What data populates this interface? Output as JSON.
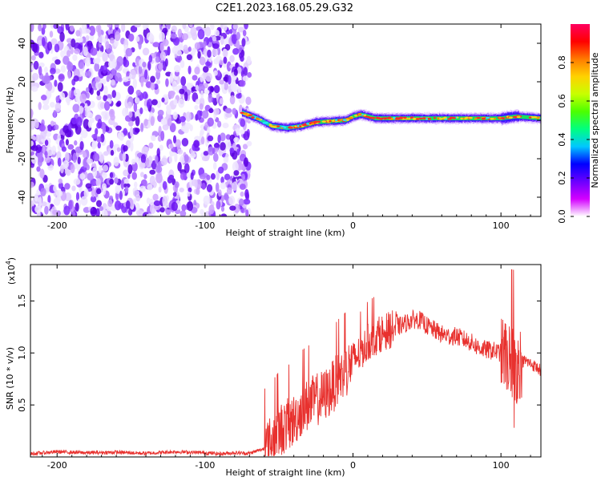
{
  "title": "C2E1.2023.168.05.29.G32",
  "chart_data": [
    {
      "type": "heatmap",
      "xlabel": "Height of straight line (km)",
      "ylabel": "Frequency (Hz)",
      "xlim": [
        -218,
        127
      ],
      "ylim": [
        -50,
        50
      ],
      "xticks": [
        -200,
        -100,
        0,
        100
      ],
      "xtick_labels": [
        "-200",
        "-100",
        "0",
        "100"
      ],
      "yticks": [
        -40,
        -20,
        0,
        20,
        40
      ],
      "ytick_labels": [
        "-40",
        "-20",
        "0",
        "20",
        "40"
      ],
      "noise_region_x": [
        -218,
        -70
      ],
      "signal_track": [
        {
          "x": -75,
          "y": 4
        },
        {
          "x": -65,
          "y": 1
        },
        {
          "x": -55,
          "y": -3
        },
        {
          "x": -45,
          "y": -4
        },
        {
          "x": -35,
          "y": -3
        },
        {
          "x": -25,
          "y": -1
        },
        {
          "x": -15,
          "y": -0.5
        },
        {
          "x": -5,
          "y": 0
        },
        {
          "x": 0,
          "y": 2
        },
        {
          "x": 5,
          "y": 3
        },
        {
          "x": 15,
          "y": 1
        },
        {
          "x": 25,
          "y": 1
        },
        {
          "x": 40,
          "y": 1
        },
        {
          "x": 60,
          "y": 1
        },
        {
          "x": 80,
          "y": 1
        },
        {
          "x": 100,
          "y": 1
        },
        {
          "x": 110,
          "y": 2
        },
        {
          "x": 127,
          "y": 1
        }
      ],
      "colorbar": {
        "label": "Normalized spectral amplitude",
        "range": [
          0,
          1
        ],
        "ticks": [
          0.0,
          0.2,
          0.4,
          0.6,
          0.8
        ],
        "tick_labels": [
          "0.0",
          "0.2",
          "0.4",
          "0.6",
          "0.8"
        ],
        "colors": [
          "#ffffff",
          "#d400ff",
          "#6a00ff",
          "#0000ff",
          "#00c8ff",
          "#00ff7f",
          "#4cff00",
          "#c8ff00",
          "#ffd200",
          "#ff7a00",
          "#ff0000",
          "#ff0060"
        ]
      },
      "grid": false
    },
    {
      "type": "line",
      "xlabel": "Height of straight line (km)",
      "ylabel": "SNR (10 * v/v)",
      "exponent_label": "(x10",
      "exponent_sup": "4",
      "exponent_close": ")",
      "xlim": [
        -218,
        127
      ],
      "ylim": [
        0,
        18500
      ],
      "xticks": [
        -200,
        -100,
        0,
        100
      ],
      "xtick_labels": [
        "-200",
        "-100",
        "0",
        "100"
      ],
      "yticks": [
        5000,
        10000,
        15000
      ],
      "ytick_labels": [
        "0.5",
        "1.0",
        "1.5"
      ],
      "color": "#e8312e",
      "series": [
        {
          "x": [
            -218,
            -200,
            -180,
            -160,
            -140,
            -120,
            -100,
            -90,
            -80,
            -70,
            -60,
            -55,
            -50,
            -45,
            -40,
            -35,
            -30,
            -25,
            -20,
            -15,
            -10,
            -5,
            0,
            5,
            10,
            15,
            20,
            25,
            30,
            35,
            40,
            45,
            50,
            55,
            60,
            65,
            70,
            75,
            80,
            85,
            90,
            95,
            100,
            103,
            106,
            108,
            110,
            113,
            117,
            122,
            127
          ],
          "y": [
            300,
            500,
            400,
            450,
            350,
            500,
            400,
            300,
            400,
            350,
            800,
            1500,
            2500,
            3000,
            3500,
            4500,
            5000,
            5500,
            5800,
            6500,
            7500,
            8200,
            9300,
            10000,
            11000,
            11500,
            12000,
            12200,
            12500,
            12800,
            13200,
            13200,
            12600,
            12200,
            11800,
            11600,
            11600,
            11300,
            11000,
            10500,
            10300,
            10200,
            10000,
            9800,
            9600,
            9000,
            8500,
            9200,
            9200,
            8800,
            8300
          ]
        }
      ],
      "grid": false
    }
  ]
}
